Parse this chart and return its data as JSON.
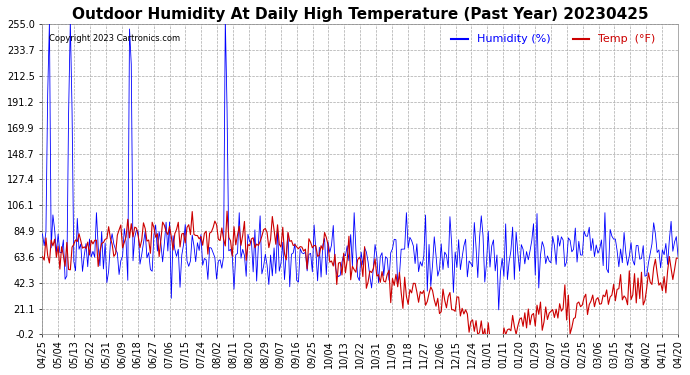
{
  "title": "Outdoor Humidity At Daily High Temperature (Past Year) 20230425",
  "copyright_text": "Copyright 2023 Cartronics.com",
  "legend_humidity": "Humidity (%)",
  "legend_temp": "Temp  (°F)",
  "yticks": [
    255.0,
    233.7,
    212.5,
    191.2,
    169.9,
    148.7,
    127.4,
    106.1,
    84.9,
    63.6,
    42.3,
    21.1,
    -0.2
  ],
  "ylim": [
    -0.2,
    255.0
  ],
  "xtick_labels": [
    "04/25",
    "05/04",
    "05/13",
    "05/22",
    "05/31",
    "06/09",
    "06/18",
    "06/27",
    "07/06",
    "07/15",
    "07/24",
    "08/02",
    "08/11",
    "08/20",
    "08/29",
    "09/07",
    "09/16",
    "09/25",
    "10/04",
    "10/13",
    "10/22",
    "10/31",
    "11/09",
    "11/18",
    "11/27",
    "12/06",
    "12/15",
    "12/24",
    "01/01",
    "01/11",
    "01/20",
    "01/29",
    "02/07",
    "02/16",
    "02/25",
    "03/06",
    "03/15",
    "03/24",
    "04/02",
    "04/11",
    "04/20"
  ],
  "humidity_color": "#0000ff",
  "temp_color": "#cc0000",
  "black_color": "#000000",
  "grid_color": "#aaaaaa",
  "background_color": "#ffffff",
  "title_fontsize": 11,
  "axis_fontsize": 7,
  "legend_fontsize": 8
}
